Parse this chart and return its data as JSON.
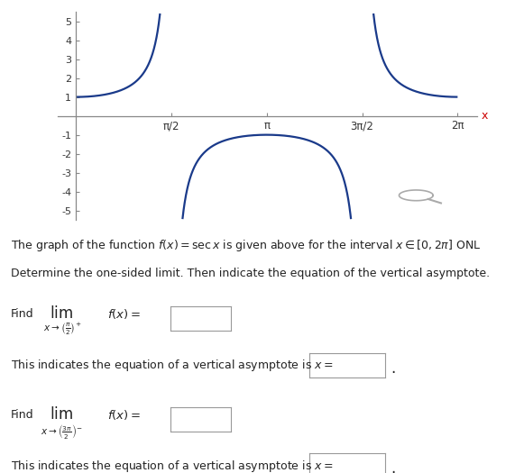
{
  "xlim": [
    -0.3,
    6.6
  ],
  "ylim": [
    -5.5,
    5.5
  ],
  "yticks": [
    -5,
    -4,
    -3,
    -2,
    -1,
    1,
    2,
    3,
    4,
    5
  ],
  "xtick_positions": [
    1.5707963,
    3.14159265,
    4.71238898,
    6.28318531
  ],
  "xtick_labels": [
    "π/2",
    "π",
    "3π/2",
    "2π"
  ],
  "curve_color": "#1a3a8a",
  "axis_color": "#888888",
  "x_label_color": "#cc0000",
  "fig_width": 5.81,
  "fig_height": 5.25,
  "background": "#ffffff",
  "text1": "The graph of the function $f(x) = \\sec x$ is given above for the interval $x \\in [0, 2\\pi]$ ONL",
  "text2": "Determine the one-sided limit. Then indicate the equation of the vertical asymptote.",
  "find_text": "Find",
  "lim1_sub": "$x \\to \\left(\\frac{\\pi}{2}\\right)^{\\!+}$",
  "lim2_sub": "$x \\to \\left(\\frac{3\\pi}{2}\\right)^{\\!-}$",
  "fx_eq": "$f(x) =$",
  "asym_text": "This indicates the equation of a vertical asymptote is $x =$",
  "period_char": "."
}
